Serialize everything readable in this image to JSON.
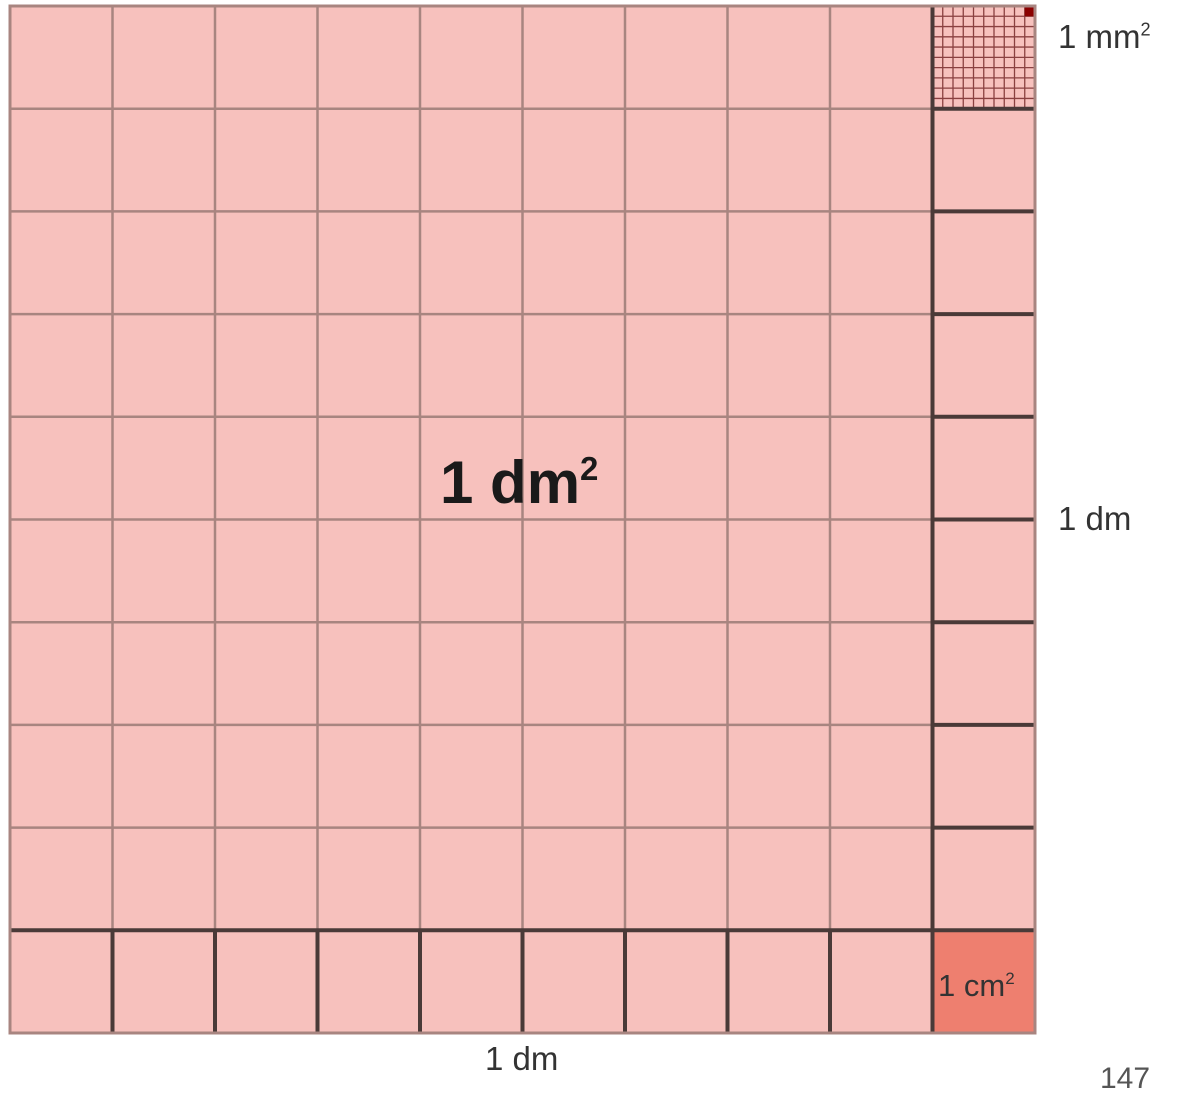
{
  "diagram": {
    "center_label": {
      "text": "1 dm",
      "sup": "2"
    },
    "mm_label": {
      "text": "1 mm",
      "sup": "2"
    },
    "cm_label": {
      "text": "1 cm",
      "sup": "2"
    },
    "side_label": "1 dm",
    "bottom_label": "1 dm",
    "page_number": "147",
    "grid_divisions": 10,
    "mm_subdivisions": 10,
    "colors": {
      "fill": "#f7c1bd",
      "cm_fill": "#ee7f6f",
      "grid_line": "#a88580",
      "strong_line": "#4a3a38",
      "mm_line": "#8a4040",
      "mm_dot": "#8b0000"
    }
  }
}
